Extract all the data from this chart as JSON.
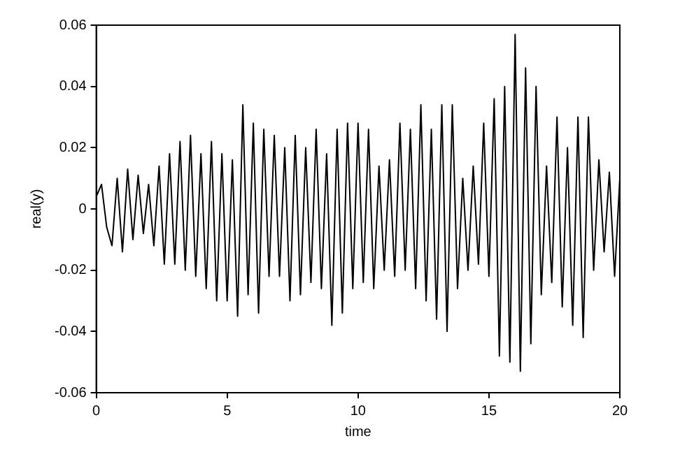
{
  "chart_data": {
    "type": "line",
    "xlabel": "time",
    "ylabel": "real(y)",
    "x": [
      0,
      0.2,
      0.4,
      0.6,
      0.8,
      1,
      1.2,
      1.4,
      1.6,
      1.8,
      2,
      2.2,
      2.4,
      2.6,
      2.8,
      3,
      3.2,
      3.4,
      3.6,
      3.8,
      4,
      4.2,
      4.4,
      4.6,
      4.8,
      5,
      5.2,
      5.4,
      5.6,
      5.8,
      6,
      6.2,
      6.4,
      6.6,
      6.8,
      7,
      7.2,
      7.4,
      7.6,
      7.8,
      8,
      8.2,
      8.4,
      8.6,
      8.8,
      9,
      9.2,
      9.4,
      9.6,
      9.8,
      10,
      10.2,
      10.4,
      10.6,
      10.8,
      11,
      11.2,
      11.4,
      11.6,
      11.8,
      12,
      12.2,
      12.4,
      12.6,
      12.8,
      13,
      13.2,
      13.4,
      13.6,
      13.8,
      14,
      14.2,
      14.4,
      14.6,
      14.8,
      15,
      15.2,
      15.4,
      15.6,
      15.8,
      16,
      16.2,
      16.4,
      16.6,
      16.8,
      17,
      17.2,
      17.4,
      17.6,
      17.8,
      18,
      18.2,
      18.4,
      18.6,
      18.8,
      19,
      19.2,
      19.4,
      19.6,
      19.8,
      20
    ],
    "series": [
      {
        "color": "#000000",
        "values": [
          0.004,
          0.008,
          -0.006,
          -0.012,
          0.01,
          -0.014,
          0.013,
          -0.01,
          0.011,
          -0.008,
          0.008,
          -0.012,
          0.014,
          -0.018,
          0.018,
          -0.018,
          0.022,
          -0.02,
          0.024,
          -0.022,
          0.018,
          -0.026,
          0.022,
          -0.03,
          0.018,
          -0.03,
          0.016,
          -0.035,
          0.034,
          -0.028,
          0.028,
          -0.034,
          0.026,
          -0.022,
          0.024,
          -0.022,
          0.02,
          -0.03,
          0.024,
          -0.028,
          0.02,
          -0.024,
          0.026,
          -0.026,
          0.018,
          -0.038,
          0.026,
          -0.034,
          0.028,
          -0.026,
          0.028,
          -0.024,
          0.026,
          -0.026,
          0.014,
          -0.02,
          0.016,
          -0.022,
          0.028,
          -0.02,
          0.026,
          -0.026,
          0.034,
          -0.03,
          0.026,
          -0.036,
          0.034,
          -0.04,
          0.034,
          -0.026,
          0.01,
          -0.02,
          0.014,
          -0.018,
          0.028,
          -0.022,
          0.036,
          -0.048,
          0.04,
          -0.05,
          0.057,
          -0.053,
          0.046,
          -0.044,
          0.04,
          -0.028,
          0.014,
          -0.024,
          0.03,
          -0.032,
          0.02,
          -0.038,
          0.03,
          -0.042,
          0.03,
          -0.02,
          0.016,
          -0.014,
          0.012,
          -0.022,
          0.01
        ]
      }
    ],
    "xlim": [
      0,
      20
    ],
    "xticks": [
      0,
      5,
      10,
      15,
      20
    ],
    "ylim": [
      -0.06,
      0.06
    ],
    "yticks": [
      -0.06,
      -0.04,
      -0.02,
      0,
      0.02,
      0.04,
      0.06
    ],
    "grid": false,
    "legend": false,
    "marker": "none",
    "line_style": "solid"
  }
}
